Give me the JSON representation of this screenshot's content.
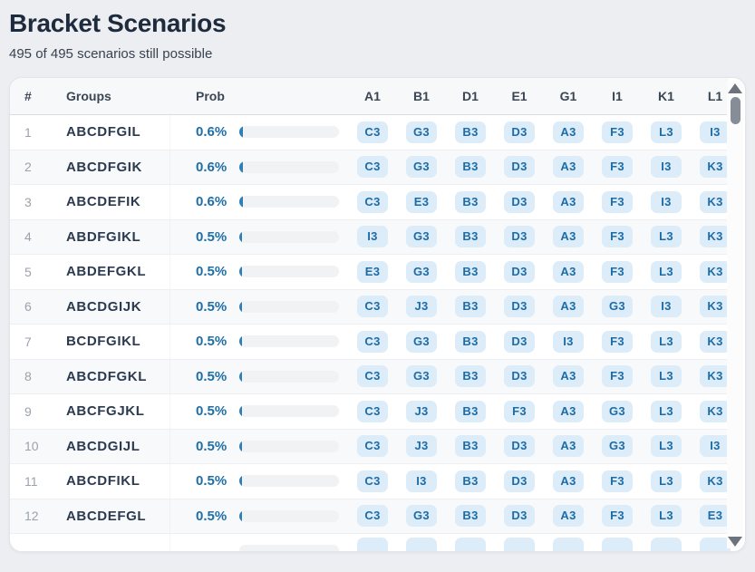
{
  "page": {
    "title": "Bracket Scenarios",
    "subtitle": "495 of 495 scenarios still possible"
  },
  "table": {
    "columns": {
      "num": "#",
      "groups": "Groups",
      "prob": "Prob"
    },
    "slot_columns": [
      "A1",
      "B1",
      "D1",
      "E1",
      "G1",
      "I1",
      "K1",
      "L1"
    ],
    "rows": [
      {
        "num": "1",
        "groups": "ABCDFGIL",
        "prob": "0.6%",
        "slots": [
          "C3",
          "G3",
          "B3",
          "D3",
          "A3",
          "F3",
          "L3",
          "I3"
        ]
      },
      {
        "num": "2",
        "groups": "ABCDFGIK",
        "prob": "0.6%",
        "slots": [
          "C3",
          "G3",
          "B3",
          "D3",
          "A3",
          "F3",
          "I3",
          "K3"
        ]
      },
      {
        "num": "3",
        "groups": "ABCDEFIK",
        "prob": "0.6%",
        "slots": [
          "C3",
          "E3",
          "B3",
          "D3",
          "A3",
          "F3",
          "I3",
          "K3"
        ]
      },
      {
        "num": "4",
        "groups": "ABDFGIKL",
        "prob": "0.5%",
        "slots": [
          "I3",
          "G3",
          "B3",
          "D3",
          "A3",
          "F3",
          "L3",
          "K3"
        ]
      },
      {
        "num": "5",
        "groups": "ABDEFGKL",
        "prob": "0.5%",
        "slots": [
          "E3",
          "G3",
          "B3",
          "D3",
          "A3",
          "F3",
          "L3",
          "K3"
        ]
      },
      {
        "num": "6",
        "groups": "ABCDGIJK",
        "prob": "0.5%",
        "slots": [
          "C3",
          "J3",
          "B3",
          "D3",
          "A3",
          "G3",
          "I3",
          "K3"
        ]
      },
      {
        "num": "7",
        "groups": "BCDFGIKL",
        "prob": "0.5%",
        "slots": [
          "C3",
          "G3",
          "B3",
          "D3",
          "I3",
          "F3",
          "L3",
          "K3"
        ]
      },
      {
        "num": "8",
        "groups": "ABCDFGKL",
        "prob": "0.5%",
        "slots": [
          "C3",
          "G3",
          "B3",
          "D3",
          "A3",
          "F3",
          "L3",
          "K3"
        ]
      },
      {
        "num": "9",
        "groups": "ABCFGJKL",
        "prob": "0.5%",
        "slots": [
          "C3",
          "J3",
          "B3",
          "F3",
          "A3",
          "G3",
          "L3",
          "K3"
        ]
      },
      {
        "num": "10",
        "groups": "ABCDGIJL",
        "prob": "0.5%",
        "slots": [
          "C3",
          "J3",
          "B3",
          "D3",
          "A3",
          "G3",
          "L3",
          "I3"
        ]
      },
      {
        "num": "11",
        "groups": "ABCDFIKL",
        "prob": "0.5%",
        "slots": [
          "C3",
          "I3",
          "B3",
          "D3",
          "A3",
          "F3",
          "L3",
          "K3"
        ]
      },
      {
        "num": "12",
        "groups": "ABCDEFGL",
        "prob": "0.5%",
        "slots": [
          "C3",
          "G3",
          "B3",
          "D3",
          "A3",
          "F3",
          "L3",
          "E3"
        ]
      }
    ],
    "partial_row": {
      "num": "",
      "groups": "",
      "prob": "",
      "slots": [
        "",
        "",
        "",
        "",
        "",
        "",
        "",
        ""
      ]
    }
  },
  "scrollbar": {
    "up_icon": "triangle-up",
    "down_icon": "triangle-down"
  },
  "colors": {
    "title": "#1d2b3c",
    "accent_blue": "#1f6fa6",
    "badge_bg": "#dcecf8",
    "badge_text": "#1d6ca6",
    "bar_fill": "#2f7fb6",
    "header_bg": "#f7f8fa",
    "row_alt_bg": "#f7f9fb",
    "page_bg": "#eceef2"
  }
}
